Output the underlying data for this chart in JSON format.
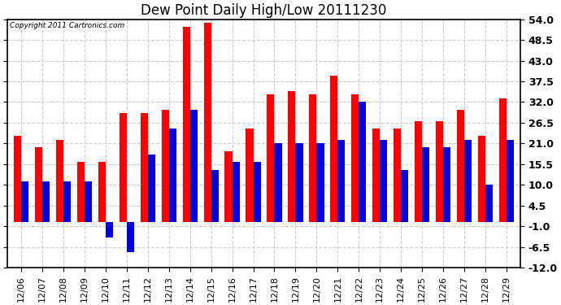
{
  "title": "Dew Point Daily High/Low 20111230",
  "copyright": "Copyright 2011 Cartronics.com",
  "dates": [
    "12/06",
    "12/07",
    "12/08",
    "12/09",
    "12/10",
    "12/11",
    "12/12",
    "12/13",
    "12/14",
    "12/15",
    "12/16",
    "12/17",
    "12/18",
    "12/19",
    "12/20",
    "12/21",
    "12/22",
    "12/23",
    "12/24",
    "12/25",
    "12/26",
    "12/27",
    "12/28",
    "12/29"
  ],
  "high_values": [
    23,
    20,
    22,
    16,
    16,
    29,
    29,
    30,
    52,
    53,
    19,
    25,
    34,
    35,
    34,
    39,
    34,
    25,
    25,
    27,
    27,
    30,
    23,
    33
  ],
  "low_values": [
    11,
    11,
    11,
    11,
    -4,
    -8,
    18,
    25,
    30,
    14,
    16,
    16,
    21,
    21,
    21,
    22,
    32,
    22,
    14,
    20,
    20,
    22,
    10,
    22
  ],
  "high_color": "#ff0000",
  "low_color": "#0000dd",
  "background_color": "#ffffff",
  "ylim_min": -12.0,
  "ylim_max": 54.0,
  "yticks": [
    -12.0,
    -6.5,
    -1.0,
    4.5,
    10.0,
    15.5,
    21.0,
    26.5,
    32.0,
    37.5,
    43.0,
    48.5,
    54.0
  ],
  "bar_width": 0.35,
  "title_fontsize": 12,
  "tick_fontsize": 8,
  "ylabel_fontsize": 9,
  "dpi": 100,
  "figwidth": 6.9,
  "figheight": 3.75
}
